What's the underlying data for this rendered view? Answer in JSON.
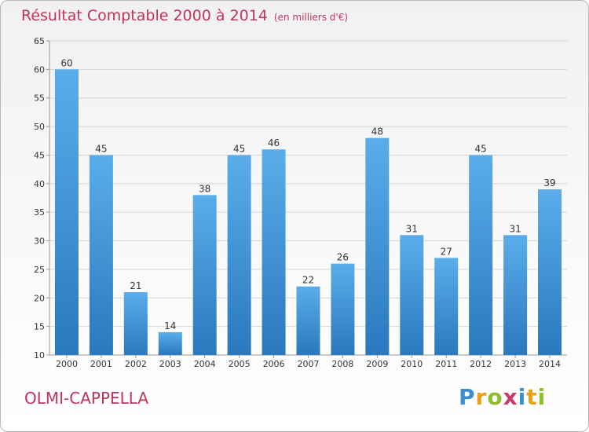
{
  "chart_data": {
    "type": "bar",
    "title": "Résultat Comptable 2000 à 2014",
    "subtitle": "(en milliers d'€)",
    "categories": [
      "2000",
      "2001",
      "2002",
      "2003",
      "2004",
      "2005",
      "2006",
      "2007",
      "2008",
      "2009",
      "2010",
      "2011",
      "2012",
      "2013",
      "2014"
    ],
    "values": [
      60,
      45,
      21,
      14,
      38,
      45,
      46,
      22,
      26,
      48,
      31,
      27,
      45,
      31,
      39
    ],
    "ylim": [
      10,
      65
    ],
    "yticks": [
      10,
      15,
      20,
      25,
      30,
      35,
      40,
      45,
      50,
      55,
      60,
      65
    ],
    "grid": true,
    "bar_color": "#3b8fd2",
    "bar_color_light": "#5aadea",
    "bar_color_dark": "#2a78be"
  },
  "commune": "OLMI-CAPPELLA",
  "logo": {
    "letters": [
      "P",
      "r",
      "o",
      "x",
      "i",
      "t",
      "i"
    ],
    "colors": [
      "#3a8fd0",
      "#e8a21a",
      "#8cbf2a",
      "#c93b6b",
      "#3a8fd0",
      "#e8a21a",
      "#8cbf2a"
    ]
  },
  "colors": {
    "title": "#c0345a",
    "text": "#333333"
  }
}
